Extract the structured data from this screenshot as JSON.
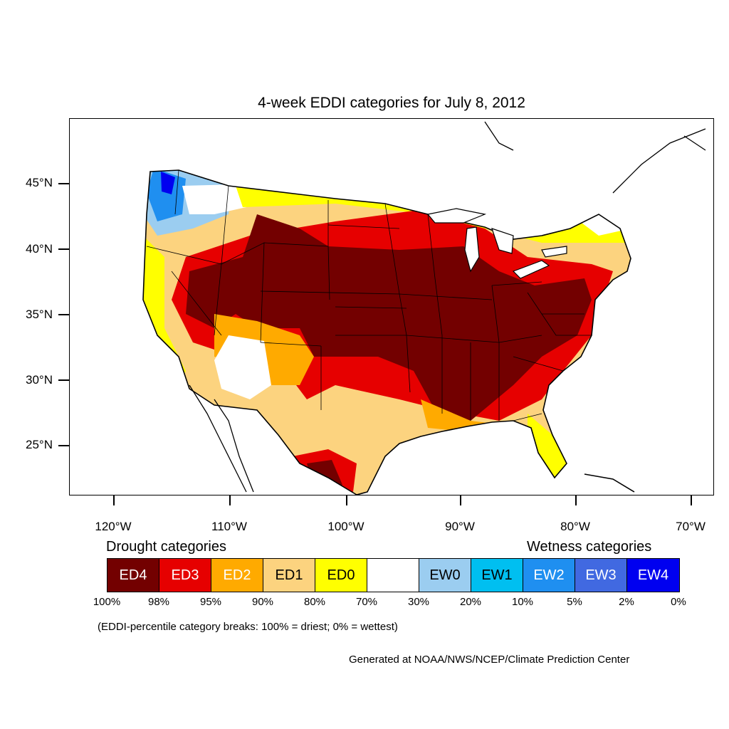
{
  "title": "4-week EDDI categories for July 8, 2012",
  "y_axis_labels": [
    "45°N",
    "40°N",
    "35°N",
    "30°N",
    "25°N"
  ],
  "x_axis_labels": [
    "120°W",
    "110°W",
    "100°W",
    "90°W",
    "80°W",
    "70°W"
  ],
  "legend": {
    "drought_title": "Drought categories",
    "wetness_title": "Wetness categories",
    "categories": [
      {
        "label": "ED4",
        "color": "#730000",
        "text_color": "#ffffff"
      },
      {
        "label": "ED3",
        "color": "#e60000",
        "text_color": "#ffffff"
      },
      {
        "label": "ED2",
        "color": "#ffaa00",
        "text_color": "#ffffff"
      },
      {
        "label": "ED1",
        "color": "#fcd37f",
        "text_color": "#000000"
      },
      {
        "label": "ED0",
        "color": "#ffff00",
        "text_color": "#000000"
      },
      {
        "label": "",
        "color": "#ffffff",
        "text_color": "#000000"
      },
      {
        "label": "EW0",
        "color": "#9bcdf0",
        "text_color": "#000000"
      },
      {
        "label": "EW1",
        "color": "#00bff0",
        "text_color": "#000000"
      },
      {
        "label": "EW2",
        "color": "#1f8ff0",
        "text_color": "#ffffff"
      },
      {
        "label": "EW3",
        "color": "#4169e1",
        "text_color": "#ffffff"
      },
      {
        "label": "EW4",
        "color": "#0000f0",
        "text_color": "#ffffff"
      }
    ],
    "percentiles": [
      "100%",
      "98%",
      "95%",
      "90%",
      "80%",
      "70%",
      "30%",
      "20%",
      "10%",
      "5%",
      "2%",
      "0%"
    ]
  },
  "note": "(EDDI-percentile category breaks: 100% = driest; 0% = wettest)",
  "credit": "Generated at NOAA/NWS/NCEP/Climate Prediction Center"
}
